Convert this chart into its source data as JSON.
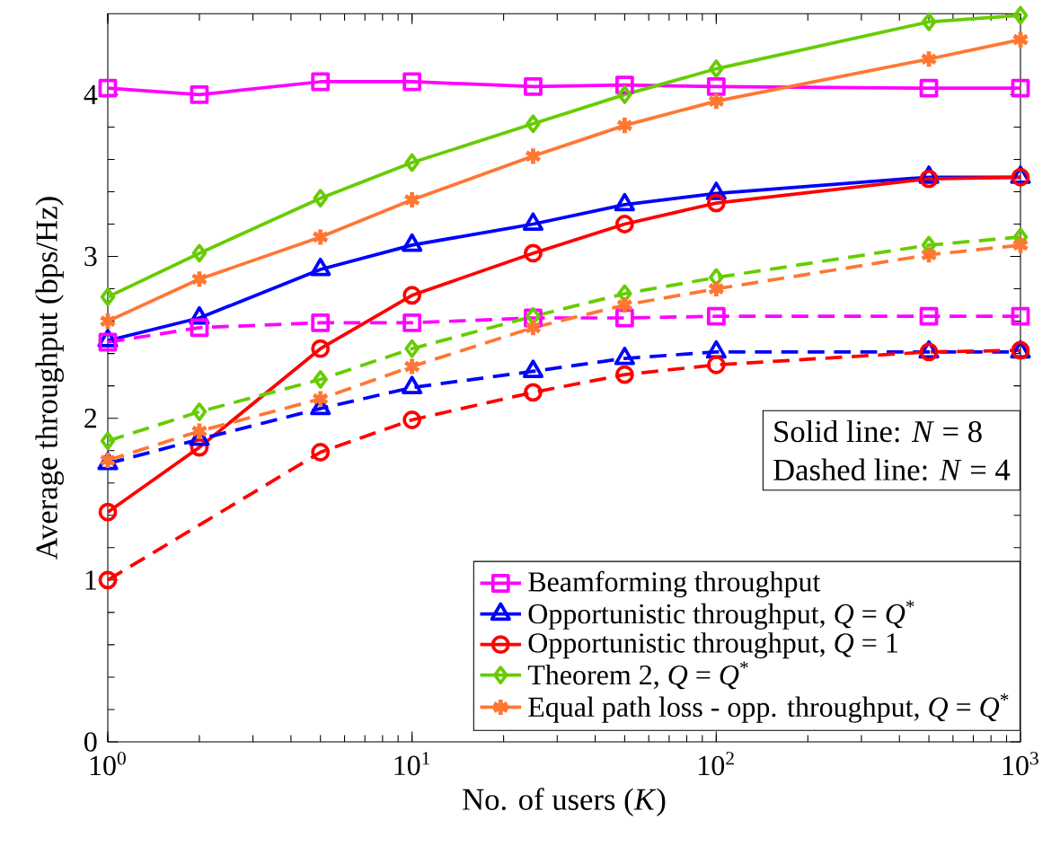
{
  "chart_data": {
    "type": "line",
    "xlabel": "No. of users (*K*)",
    "ylabel": "Average throughput (bps/Hz)",
    "x": [
      1,
      2,
      5,
      10,
      25,
      50,
      100,
      500,
      1000
    ],
    "log": "x",
    "xlim": [
      1,
      1000
    ],
    "ylim": [
      0,
      4.5
    ],
    "xticks": [
      {
        "value": 1,
        "label": "10$^{0}$"
      },
      {
        "value": 10,
        "label": "10$^{1}$"
      },
      {
        "value": 100,
        "label": "10$^{2}$"
      },
      {
        "value": 1000,
        "label": "10$^{3}$"
      }
    ],
    "yticks": [
      0,
      1,
      2,
      3,
      4
    ],
    "grid": false,
    "legend": "bottom right",
    "annotations": [
      "Solid line: *N* = 8",
      "Dashed line: *N* = 4"
    ],
    "series": [
      {
        "name": "Beamforming throughput",
        "color": "#ff00ff",
        "marker": "square",
        "line_style": "solid",
        "values": [
          4.04,
          4.0,
          4.08,
          4.08,
          4.05,
          4.06,
          4.05,
          4.04,
          4.04
        ]
      },
      {
        "name": "Opportunistic throughput, *Q* = *Q*$^{*}$",
        "color": "#0000ff",
        "marker": "triangle",
        "line_style": "solid",
        "values": [
          2.48,
          2.62,
          2.92,
          3.07,
          3.2,
          3.32,
          3.39,
          3.49,
          3.49
        ]
      },
      {
        "name": "Opportunistic throughput, *Q* = 1",
        "color": "#ff0000",
        "marker": "circle",
        "line_style": "solid",
        "values": [
          1.42,
          1.82,
          2.43,
          2.76,
          3.02,
          3.2,
          3.33,
          3.48,
          3.49
        ]
      },
      {
        "name": "Theorem 2, *Q* = *Q*$^{*}$",
        "color": "#66cc00",
        "marker": "diamond",
        "line_style": "solid",
        "values": [
          2.75,
          3.02,
          3.36,
          3.58,
          3.82,
          4.0,
          4.16,
          4.45,
          4.49
        ]
      },
      {
        "name": "Equal path loss - opp. throughput, *Q* = *Q*$^{*}$",
        "color": "#ff7733",
        "marker": "cross",
        "line_style": "solid",
        "values": [
          2.6,
          2.86,
          3.12,
          3.35,
          3.62,
          3.81,
          3.96,
          4.22,
          4.34
        ]
      },
      {
        "color": "#ff00ff",
        "marker": "square",
        "line_style": "dashed",
        "values": [
          2.47,
          2.56,
          2.59,
          2.59,
          2.62,
          2.62,
          2.63,
          2.63,
          2.63
        ]
      },
      {
        "color": "#0000ff",
        "marker": "triangle",
        "line_style": "dashed",
        "values": [
          1.72,
          1.87,
          2.06,
          2.19,
          2.29,
          2.37,
          2.41,
          2.41,
          2.41
        ]
      },
      {
        "color": "#ff0000",
        "marker": "circle",
        "line_style": "dashed",
        "values": [
          1.0,
          null,
          1.79,
          1.99,
          2.16,
          2.27,
          2.33,
          2.41,
          2.42
        ]
      },
      {
        "color": "#66cc00",
        "marker": "diamond",
        "line_style": "dashed",
        "values": [
          1.86,
          2.04,
          2.24,
          2.43,
          2.63,
          2.77,
          2.87,
          3.07,
          3.12
        ]
      },
      {
        "color": "#ff7733",
        "marker": "cross",
        "line_style": "dashed",
        "values": [
          1.74,
          1.92,
          2.12,
          2.32,
          2.56,
          2.7,
          2.8,
          3.01,
          3.07
        ]
      }
    ]
  }
}
